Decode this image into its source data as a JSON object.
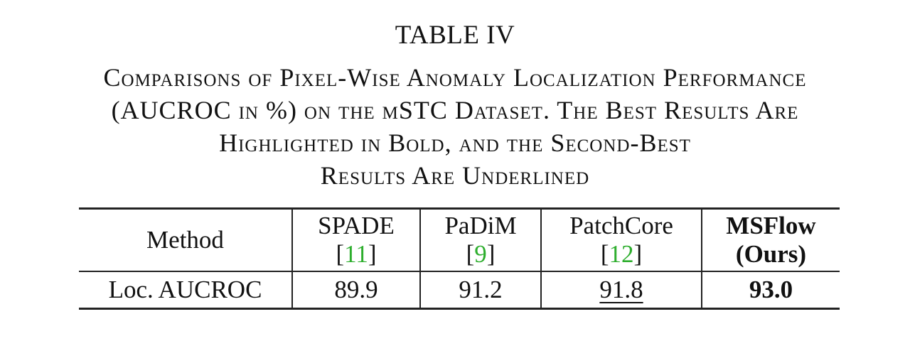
{
  "table_label": "TABLE IV",
  "caption": {
    "lines": [
      "Comparisons of Pixel-Wise Anomaly Localization Performance",
      "(AUCROC in %) on the mSTC Dataset. The Best Results Are",
      "Highlighted in Bold, and the Second-Best",
      "Results Are Underlined"
    ]
  },
  "table": {
    "header": {
      "method": "Method",
      "spade": {
        "name": "SPADE",
        "cite_open": "[",
        "cite_num": "11",
        "cite_close": "]"
      },
      "padim": {
        "name": "PaDiM",
        "cite_open": "[",
        "cite_num": "9",
        "cite_close": "]"
      },
      "patchcore": {
        "name": "PatchCore",
        "cite_open": "[",
        "cite_num": "12",
        "cite_close": "]"
      },
      "msflow": {
        "name": "MSFlow",
        "sub": "(Ours)"
      }
    },
    "rows": [
      {
        "metric": "Loc. AUCROC",
        "spade": "89.9",
        "padim": "91.2",
        "patchcore": "91.8",
        "msflow": "93.0"
      }
    ]
  },
  "colors": {
    "citation": "#2eae2e",
    "text": "#111111",
    "rules": "#222222"
  }
}
